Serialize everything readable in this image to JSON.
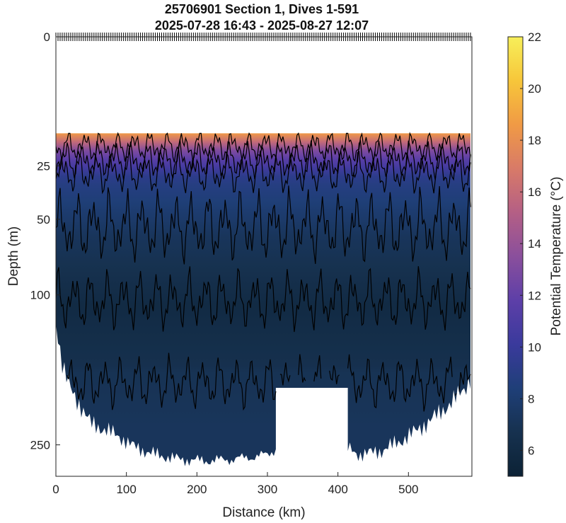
{
  "chart_data": {
    "type": "heatmap",
    "title": "25706901 Section 1, Dives 1-591",
    "subtitle": "2025-07-28 16:43 - 2025-08-27 12:07",
    "xlabel": "Distance (km)",
    "ylabel": "Depth (m)",
    "colorbar_label": "Potential Temperature (°C)",
    "x_ticks": [
      0,
      100,
      200,
      300,
      400,
      500
    ],
    "y_ticks": [
      0,
      25,
      50,
      100,
      250
    ],
    "colorbar_ticks": [
      6,
      8,
      10,
      12,
      14,
      16,
      18,
      20,
      22
    ],
    "xlim": [
      0,
      590
    ],
    "ylim": [
      0,
      290
    ],
    "y_scale": "sqrt (reversed, depth increases downward)",
    "colorbar_range": [
      5,
      22
    ],
    "colormap": [
      "#0c2235",
      "#16314f",
      "#1f3f78",
      "#3a3a9c",
      "#5d3fa8",
      "#8a4f9c",
      "#b45f85",
      "#d87a68",
      "#f09a45",
      "#f7c63a",
      "#f7ef5a"
    ],
    "data_top_depth_m": 14,
    "gap_km": [
      312,
      414
    ],
    "gap_top_depth_m": 185,
    "contour_depths_m": [
      18,
      23,
      28,
      55,
      105,
      180
    ],
    "bottom_profile": [
      {
        "x": 0,
        "depth": 120
      },
      {
        "x": 10,
        "depth": 165
      },
      {
        "x": 20,
        "depth": 185
      },
      {
        "x": 35,
        "depth": 205
      },
      {
        "x": 50,
        "depth": 225
      },
      {
        "x": 70,
        "depth": 232
      },
      {
        "x": 90,
        "depth": 240
      },
      {
        "x": 110,
        "depth": 252
      },
      {
        "x": 140,
        "depth": 262
      },
      {
        "x": 175,
        "depth": 268
      },
      {
        "x": 210,
        "depth": 270
      },
      {
        "x": 250,
        "depth": 268
      },
      {
        "x": 280,
        "depth": 265
      },
      {
        "x": 300,
        "depth": 262
      },
      {
        "x": 312,
        "depth": 255
      },
      {
        "x": 414,
        "depth": 255
      },
      {
        "x": 430,
        "depth": 262
      },
      {
        "x": 460,
        "depth": 258
      },
      {
        "x": 490,
        "depth": 245
      },
      {
        "x": 520,
        "depth": 228
      },
      {
        "x": 545,
        "depth": 212
      },
      {
        "x": 565,
        "depth": 198
      },
      {
        "x": 580,
        "depth": 185
      },
      {
        "x": 588,
        "depth": 175
      }
    ]
  }
}
